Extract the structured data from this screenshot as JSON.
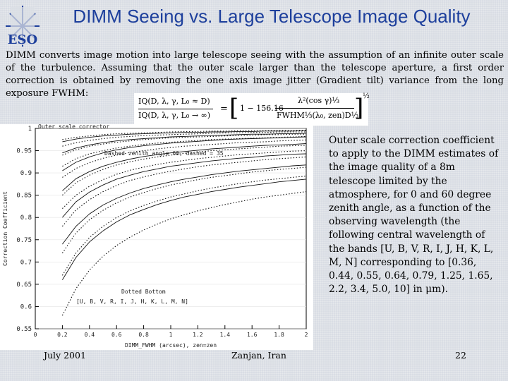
{
  "logo": {
    "text": "ESO",
    "icon": "eso-star-logo",
    "color": "#1d3f9c"
  },
  "title": "DIMM Seeing vs. Large Telescope Image Quality",
  "intro": "DIMM converts image motion into large telescope seeing with the assumption of an infinite outer scale of the turbulence. Assuming that the outer scale larger than the telescope aperture, a first order correction is obtained by removing the one axis image jitter (Gradient tilt) variance from the long exposure FWHM:",
  "formula": {
    "num": "IQ(D, λ, γ, L₀ ≈ D)",
    "den": "IQ(D, λ, γ, L₀ → ∞)",
    "equals": "=",
    "one": "1 − 156.16",
    "frac_num": "λ²(cos γ)⅓",
    "frac_den": "FWHM⅓(λ₀, zen)D⅓",
    "exponent": "½"
  },
  "caption": "Outer scale correction coefficient to apply to the DIMM estimates of the image quality of a 8m telescope limited by the atmosphere, for 0 and 60 degree zenith angle, as a function of the observing wavelength (the following central wavelength of the bands [U, B, V, R, I, J, H, K, L, M, N] corresponding to [0.36, 0.44, 0.55, 0.64, 0.79, 1.25, 1.65, 2.2, 3.4, 5.0, 10] in μm).",
  "footer": {
    "date": "July 2001",
    "location": "Zanjan, Iran",
    "page": "22"
  },
  "chart_data": {
    "type": "line",
    "title": "Outer scale corrector",
    "ylabel": "Correction Coefficient",
    "xlabel": "DIMM_FWHM (arcsec), zen=zen",
    "legend_top": "Dashed zenith angle 60, dashed = 35",
    "legend_bottom_title": "Dotted Bottom",
    "legend_bottom": "[U, B, V, R, I, J, H, K, L, M, N]",
    "xlim": [
      0,
      2
    ],
    "ylim": [
      0.55,
      1
    ],
    "x_ticks": [
      "0",
      "0.2",
      "0.4",
      "0.6",
      "0.8",
      "1",
      "1.2",
      "1.4",
      "1.6",
      "1.8",
      "2"
    ],
    "y_ticks": [
      "0.55",
      "0.6",
      "0.65",
      "0.7",
      "0.75",
      "0.8",
      "0.85",
      "0.9",
      "0.95",
      "1"
    ],
    "x": [
      0.2,
      0.3,
      0.4,
      0.5,
      0.6,
      0.7,
      0.8,
      0.9,
      1.0,
      1.1,
      1.2,
      1.3,
      1.4,
      1.5,
      1.6,
      1.7,
      1.8,
      1.9,
      2.0
    ],
    "series": [
      {
        "style": "dotted",
        "values": [
          0.975,
          0.98,
          0.983,
          0.986,
          0.988,
          0.989,
          0.99,
          0.991,
          0.992,
          0.993,
          0.993,
          0.994,
          0.994,
          0.995,
          0.995,
          0.995,
          0.996,
          0.996,
          0.996
        ]
      },
      {
        "style": "dotted",
        "values": [
          0.96,
          0.968,
          0.973,
          0.977,
          0.98,
          0.982,
          0.984,
          0.985,
          0.986,
          0.987,
          0.988,
          0.989,
          0.99,
          0.99,
          0.991,
          0.991,
          0.992,
          0.992,
          0.992
        ]
      },
      {
        "style": "dotted",
        "values": [
          0.94,
          0.952,
          0.96,
          0.965,
          0.969,
          0.972,
          0.975,
          0.977,
          0.979,
          0.98,
          0.981,
          0.982,
          0.983,
          0.984,
          0.985,
          0.986,
          0.986,
          0.987,
          0.987
        ]
      },
      {
        "style": "dotted",
        "values": [
          0.915,
          0.932,
          0.943,
          0.95,
          0.956,
          0.96,
          0.964,
          0.967,
          0.969,
          0.971,
          0.973,
          0.975,
          0.976,
          0.977,
          0.978,
          0.979,
          0.98,
          0.981,
          0.982
        ]
      },
      {
        "style": "dotted",
        "values": [
          0.89,
          0.91,
          0.923,
          0.933,
          0.94,
          0.946,
          0.95,
          0.954,
          0.957,
          0.96,
          0.962,
          0.964,
          0.966,
          0.968,
          0.969,
          0.97,
          0.972,
          0.973,
          0.974
        ]
      },
      {
        "style": "dotted",
        "values": [
          0.85,
          0.878,
          0.895,
          0.908,
          0.918,
          0.925,
          0.931,
          0.936,
          0.94,
          0.944,
          0.947,
          0.95,
          0.952,
          0.954,
          0.956,
          0.958,
          0.96,
          0.961,
          0.962
        ]
      },
      {
        "style": "dotted",
        "values": [
          0.82,
          0.85,
          0.87,
          0.885,
          0.897,
          0.906,
          0.913,
          0.919,
          0.924,
          0.928,
          0.932,
          0.935,
          0.938,
          0.941,
          0.943,
          0.945,
          0.947,
          0.949,
          0.95
        ]
      },
      {
        "style": "dotted",
        "values": [
          0.78,
          0.817,
          0.84,
          0.858,
          0.872,
          0.883,
          0.891,
          0.898,
          0.904,
          0.909,
          0.914,
          0.918,
          0.921,
          0.924,
          0.927,
          0.93,
          0.932,
          0.934,
          0.936
        ]
      },
      {
        "style": "dotted",
        "values": [
          0.72,
          0.765,
          0.795,
          0.816,
          0.833,
          0.846,
          0.856,
          0.865,
          0.873,
          0.879,
          0.885,
          0.89,
          0.894,
          0.898,
          0.902,
          0.905,
          0.908,
          0.91,
          0.913
        ]
      },
      {
        "style": "dotted",
        "values": [
          0.67,
          0.72,
          0.755,
          0.78,
          0.8,
          0.815,
          0.827,
          0.837,
          0.846,
          0.853,
          0.86,
          0.866,
          0.871,
          0.876,
          0.88,
          0.884,
          0.887,
          0.89,
          0.893
        ]
      },
      {
        "style": "dotted",
        "values": [
          0.58,
          0.64,
          0.682,
          0.713,
          0.737,
          0.756,
          0.772,
          0.785,
          0.797,
          0.806,
          0.815,
          0.822,
          0.829,
          0.835,
          0.841,
          0.846,
          0.85,
          0.854,
          0.858
        ]
      },
      {
        "style": "solid",
        "values": [
          0.97,
          0.976,
          0.98,
          0.983,
          0.985,
          0.987,
          0.988,
          0.989,
          0.99,
          0.991,
          0.991,
          0.992,
          0.992,
          0.993,
          0.993,
          0.994,
          0.994,
          0.994,
          0.995
        ]
      },
      {
        "style": "solid",
        "values": [
          0.945,
          0.956,
          0.963,
          0.968,
          0.972,
          0.975,
          0.977,
          0.979,
          0.981,
          0.982,
          0.983,
          0.984,
          0.985,
          0.986,
          0.987,
          0.987,
          0.988,
          0.988,
          0.989
        ]
      },
      {
        "style": "solid",
        "values": [
          0.905,
          0.924,
          0.936,
          0.945,
          0.952,
          0.957,
          0.961,
          0.964,
          0.967,
          0.969,
          0.971,
          0.973,
          0.975,
          0.976,
          0.977,
          0.978,
          0.979,
          0.98,
          0.981
        ]
      },
      {
        "style": "solid",
        "values": [
          0.86,
          0.887,
          0.903,
          0.915,
          0.924,
          0.931,
          0.937,
          0.941,
          0.945,
          0.948,
          0.951,
          0.954,
          0.956,
          0.958,
          0.96,
          0.962,
          0.963,
          0.964,
          0.966
        ]
      },
      {
        "style": "solid",
        "values": [
          0.8,
          0.835,
          0.857,
          0.873,
          0.886,
          0.895,
          0.903,
          0.909,
          0.915,
          0.919,
          0.923,
          0.927,
          0.93,
          0.933,
          0.935,
          0.938,
          0.94,
          0.942,
          0.943
        ]
      },
      {
        "style": "solid",
        "values": [
          0.74,
          0.78,
          0.808,
          0.828,
          0.843,
          0.855,
          0.865,
          0.873,
          0.88,
          0.886,
          0.891,
          0.896,
          0.9,
          0.904,
          0.907,
          0.91,
          0.913,
          0.916,
          0.918
        ]
      },
      {
        "style": "solid",
        "values": [
          0.66,
          0.71,
          0.745,
          0.77,
          0.79,
          0.806,
          0.818,
          0.829,
          0.838,
          0.846,
          0.852,
          0.858,
          0.863,
          0.868,
          0.872,
          0.876,
          0.88,
          0.883,
          0.886
        ]
      }
    ]
  }
}
